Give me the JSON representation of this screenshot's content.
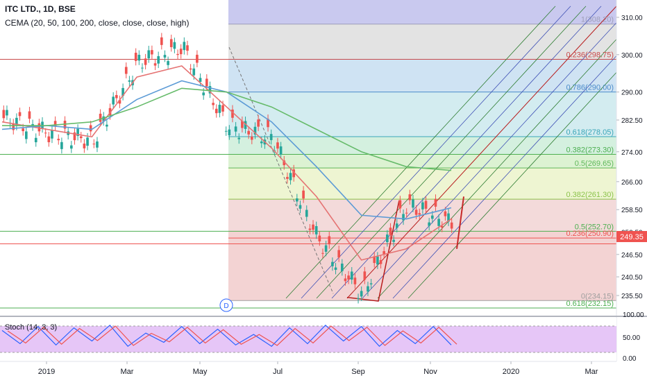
{
  "header": {
    "symbol_line": "ITC LTD., 1D, BSE",
    "indicator_line": "CEMA (20, 50, 100, 200, close, close, close, high)"
  },
  "price_panel": {
    "y_ticks": [
      "310.00",
      "300.00",
      "290.00",
      "282.50",
      "274.00",
      "266.00",
      "258.50",
      "252.50",
      "246.50",
      "240.50",
      "235.50"
    ],
    "last_price": "249.35",
    "last_price_color": "#ef5350",
    "event_marker": "D"
  },
  "fib_levels": [
    {
      "label": "1(308.20)",
      "price": 308.2,
      "zone_color": "#c9c9ef"
    },
    {
      "label": "0.236(298.75)",
      "price": 298.75,
      "zone_color": "#e3e3e3"
    },
    {
      "label": "0.786(290.00)",
      "price": 290.0,
      "zone_color": "#cfe3f3"
    },
    {
      "label": "0.618(278.05)",
      "price": 278.05,
      "zone_color": "#d3ecf0"
    },
    {
      "label": "0.382(273.30)",
      "price": 273.3,
      "zone_color": "#d4f0df"
    },
    {
      "label": "0.5(269.65)",
      "price": 269.65,
      "zone_color": "#dcf2d2"
    },
    {
      "label": "0.382(261.30)",
      "price": 261.3,
      "zone_color": "#eef5d2"
    },
    {
      "label": "0.5(252.70)",
      "price": 252.7,
      "zone_color": "#f3dada"
    },
    {
      "label": "0.236(250.90)",
      "price": 250.9,
      "zone_color": "#f3d3d3"
    },
    {
      "label": "0(234.15)",
      "price": 234.15,
      "zone_color": "#f3d3d3"
    },
    {
      "label": "0.618(232.15)",
      "price": 232.15,
      "zone_color": ""
    }
  ],
  "oscillator_panel": {
    "title": "Stoch (14, 3, 3)",
    "y_ticks": [
      "100.00",
      "50.00",
      "0.00"
    ],
    "band_color": "#e6c6f7"
  },
  "x_axis": {
    "labels": [
      "2019",
      "Mar",
      "May",
      "Jul",
      "Sep",
      "Nov",
      "2020",
      "Mar"
    ]
  },
  "chart_data": {
    "type": "line",
    "title": "ITC LTD., 1D, BSE",
    "xlabel": "",
    "ylabel": "",
    "ylim": [
      232,
      313
    ],
    "x": [
      "2019-01",
      "2019-02",
      "2019-03",
      "2019-04",
      "2019-05",
      "2019-06",
      "2019-07",
      "2019-08",
      "2019-09",
      "2019-10",
      "2019-11"
    ],
    "series": [
      {
        "name": "ITC LTD.",
        "color": "#ef5350",
        "values": [
          283,
          279,
          277,
          298,
          302,
          281,
          278,
          251,
          236,
          260,
          255
        ]
      },
      {
        "name": "",
        "color": "#e57373",
        "values": [
          282,
          280,
          278,
          294,
          297,
          286,
          275,
          262,
          245,
          248,
          256
        ]
      },
      {
        "name": "",
        "color": "#5c9bd6",
        "values": [
          280,
          281,
          280,
          288,
          293,
          290,
          282,
          270,
          257,
          256,
          259
        ]
      },
      {
        "name": "",
        "color": "#66bb6a",
        "values": [
          281,
          281,
          282,
          286,
          291,
          290,
          286,
          280,
          274,
          270,
          269
        ]
      }
    ],
    "stochastic": {
      "name": "Stoch (14, 3, 3)",
      "ylim": [
        0,
        100
      ],
      "values": [
        70,
        20,
        85,
        15,
        80,
        30,
        90,
        10,
        60,
        25,
        85,
        20,
        75,
        15,
        55,
        10,
        80,
        20,
        90,
        30,
        85,
        10,
        70,
        20,
        85,
        15
      ]
    }
  }
}
